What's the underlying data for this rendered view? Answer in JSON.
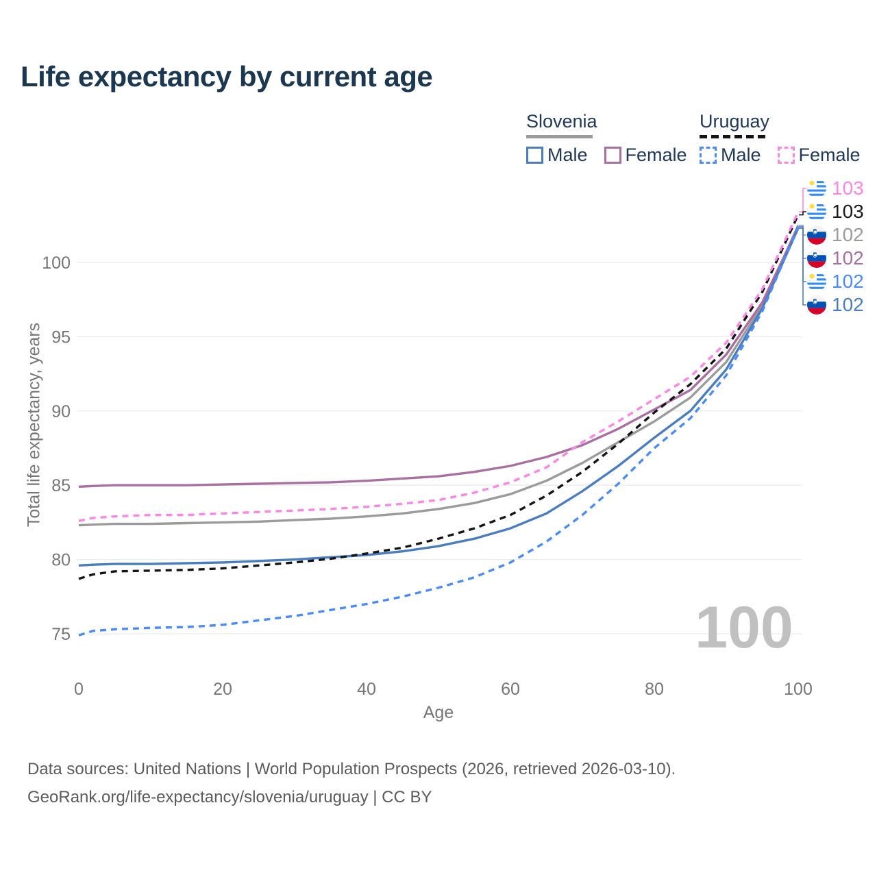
{
  "title": "Life expectancy by current age",
  "legend": {
    "groups": [
      {
        "country": "Slovenia",
        "line_style": "solid",
        "items": [
          {
            "label": "Male"
          },
          {
            "label": "Female"
          }
        ]
      },
      {
        "country": "Uruguay",
        "line_style": "dashed",
        "items": [
          {
            "label": "Male"
          },
          {
            "label": "Female"
          }
        ]
      }
    ]
  },
  "chart_data": {
    "type": "line",
    "title": "Life expectancy by current age",
    "xlabel": "Age",
    "ylabel": "Total life expectancy, years",
    "xlim": [
      0,
      100
    ],
    "ylim": [
      74,
      104
    ],
    "xticks": [
      0,
      20,
      40,
      60,
      80,
      100
    ],
    "yticks": [
      75,
      80,
      85,
      90,
      95,
      100
    ],
    "grid": "horizontal",
    "legend_position": "top-right",
    "watermark": "100",
    "x": [
      0,
      2,
      5,
      10,
      15,
      20,
      25,
      30,
      35,
      40,
      45,
      50,
      55,
      60,
      65,
      70,
      75,
      80,
      85,
      90,
      95,
      100
    ],
    "series": [
      {
        "id": "slovenia-total",
        "name": "Slovenia (both sexes)",
        "color": "#9b9b9b",
        "dashed": false,
        "values": [
          82.3,
          82.35,
          82.4,
          82.4,
          82.45,
          82.5,
          82.55,
          82.65,
          82.75,
          82.9,
          83.1,
          83.4,
          83.8,
          84.4,
          85.3,
          86.5,
          87.9,
          89.3,
          90.9,
          93.3,
          97.1,
          102.5
        ]
      },
      {
        "id": "slovenia-female",
        "name": "Slovenia Female",
        "color": "#a96fa3",
        "dashed": false,
        "values": [
          84.9,
          84.95,
          85.0,
          85.0,
          85.0,
          85.05,
          85.1,
          85.15,
          85.2,
          85.3,
          85.45,
          85.6,
          85.9,
          86.3,
          86.9,
          87.7,
          88.8,
          90.1,
          91.4,
          93.8,
          97.3,
          102.4
        ]
      },
      {
        "id": "slovenia-male",
        "name": "Slovenia Male",
        "color": "#4a7dbf",
        "dashed": false,
        "values": [
          79.6,
          79.65,
          79.7,
          79.7,
          79.75,
          79.8,
          79.9,
          80.0,
          80.15,
          80.3,
          80.55,
          80.9,
          81.4,
          82.1,
          83.1,
          84.6,
          86.3,
          88.2,
          90.0,
          92.8,
          96.9,
          102.3
        ]
      },
      {
        "id": "uruguay-total",
        "name": "Uruguay (both sexes)",
        "color": "#141414",
        "dashed": true,
        "values": [
          78.7,
          79.0,
          79.2,
          79.25,
          79.3,
          79.4,
          79.6,
          79.8,
          80.05,
          80.4,
          80.8,
          81.4,
          82.1,
          83.0,
          84.3,
          85.9,
          87.8,
          89.9,
          91.8,
          94.2,
          98.0,
          103.2
        ]
      },
      {
        "id": "uruguay-male",
        "name": "Uruguay Male",
        "color": "#4a8cf7",
        "dashed": true,
        "values": [
          74.9,
          75.2,
          75.3,
          75.4,
          75.45,
          75.6,
          75.9,
          76.2,
          76.6,
          77.0,
          77.5,
          78.1,
          78.8,
          79.8,
          81.2,
          83.0,
          85.1,
          87.5,
          89.5,
          92.4,
          96.7,
          102.4
        ]
      },
      {
        "id": "uruguay-female",
        "name": "Uruguay Female",
        "color": "#fb87e3",
        "dashed": true,
        "values": [
          82.6,
          82.8,
          82.9,
          83.0,
          83.0,
          83.1,
          83.2,
          83.3,
          83.4,
          83.55,
          83.75,
          84.0,
          84.5,
          85.2,
          86.2,
          87.9,
          89.3,
          90.8,
          92.3,
          94.6,
          98.2,
          103.4
        ]
      }
    ]
  },
  "end_labels": [
    {
      "series": "uruguay-female",
      "flag": "uruguay",
      "value": "103",
      "color": "#fb87e3"
    },
    {
      "series": "uruguay-total",
      "flag": "uruguay",
      "value": "103",
      "color": "#1a1a1a"
    },
    {
      "series": "slovenia-total",
      "flag": "slovenia",
      "value": "102",
      "color": "#9b9b9b"
    },
    {
      "series": "slovenia-female",
      "flag": "slovenia",
      "value": "102",
      "color": "#a96fa3"
    },
    {
      "series": "uruguay-male",
      "flag": "uruguay",
      "value": "102",
      "color": "#4a8cf7"
    },
    {
      "series": "slovenia-male",
      "flag": "slovenia",
      "value": "102",
      "color": "#4a7dbf"
    }
  ],
  "footer": {
    "line1": "Data sources: United Nations | World Population Prospects (2026, retrieved 2026-03-10).",
    "line2": "GeoRank.org/life-expectancy/slovenia/uruguay | CC BY"
  },
  "colors": {
    "title_text": "#1c3850",
    "legend_text": "#20395a",
    "axis_text": "#767676",
    "gridline": "#ececec",
    "watermark": "#c0c0c0",
    "footer_text": "#5b5b5b",
    "slovenia_male": "#4a7dbf",
    "slovenia_female": "#a96fa3",
    "slovenia_total": "#9b9b9b",
    "uruguay_male": "#4a8cf7",
    "uruguay_female": "#fb87e3",
    "uruguay_total": "#141414"
  }
}
